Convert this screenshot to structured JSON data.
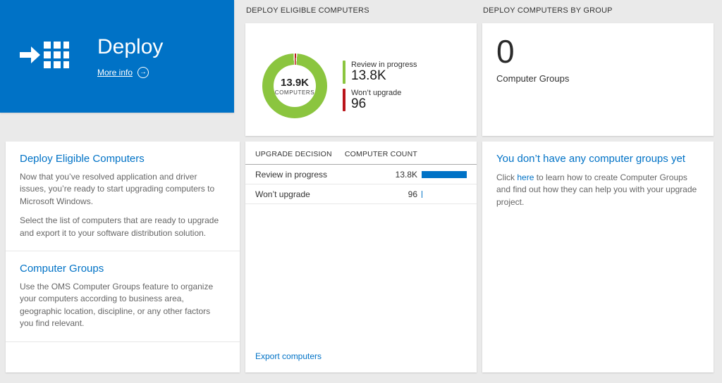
{
  "window": {
    "background": "#eaeaea",
    "accent_blue": "#0072c6"
  },
  "left": {
    "tile": {
      "title": "Deploy",
      "more_info_label": "More info"
    },
    "card": {
      "sections": [
        {
          "heading": "Deploy Eligible Computers",
          "paragraphs": [
            "Now that you’ve resolved application and driver issues, you’re ready to start upgrading computers to Microsoft Windows.",
            "Select the list of computers that are ready to upgrade and export it to your software distribution solution."
          ]
        },
        {
          "heading": "Computer Groups",
          "paragraphs": [
            "Use the OMS Computer Groups feature to organize your computers according to business area, geographic location, discipline, or any other factors you find relevant."
          ]
        }
      ]
    }
  },
  "middle": {
    "header": "DEPLOY ELIGIBLE COMPUTERS",
    "donut": {
      "center_value": "13.9K",
      "center_label": "COMPUTERS",
      "legend": [
        {
          "label": "Review in progress",
          "value": "13.8K"
        },
        {
          "label": "Won’t upgrade",
          "value": "96"
        }
      ]
    },
    "table": {
      "columns": [
        "UPGRADE DECISION",
        "COMPUTER COUNT"
      ],
      "rows": [
        {
          "label": "Review in progress",
          "count": "13.8K"
        },
        {
          "label": "Won’t upgrade",
          "count": "96"
        }
      ]
    },
    "footer_link": "Export computers"
  },
  "right": {
    "header": "DEPLOY COMPUTERS BY GROUP",
    "summary": {
      "value": "0",
      "label": "Computer Groups"
    },
    "empty_state": {
      "heading": "You don’t have any computer groups yet",
      "text_before_link": "Click ",
      "link_text": "here",
      "text_after_link": " to learn how to create Computer Groups and find out how they can help you with your upgrade project."
    }
  },
  "chart_data": [
    {
      "type": "pie",
      "subtype": "donut",
      "title": "DEPLOY ELIGIBLE COMPUTERS",
      "categories": [
        "Review in progress",
        "Won't upgrade"
      ],
      "values": [
        13800,
        96
      ],
      "colors": [
        "#8bc53f",
        "#ba141a"
      ],
      "center_value": "13.9K",
      "center_label": "COMPUTERS",
      "legend_position": "right"
    },
    {
      "type": "bar",
      "orientation": "horizontal",
      "columns": [
        "UPGRADE DECISION",
        "COMPUTER COUNT"
      ],
      "categories": [
        "Review in progress",
        "Won't upgrade"
      ],
      "values": [
        13800,
        96
      ],
      "display_values": [
        "13.8K",
        "96"
      ],
      "color": "#0072c6"
    }
  ]
}
